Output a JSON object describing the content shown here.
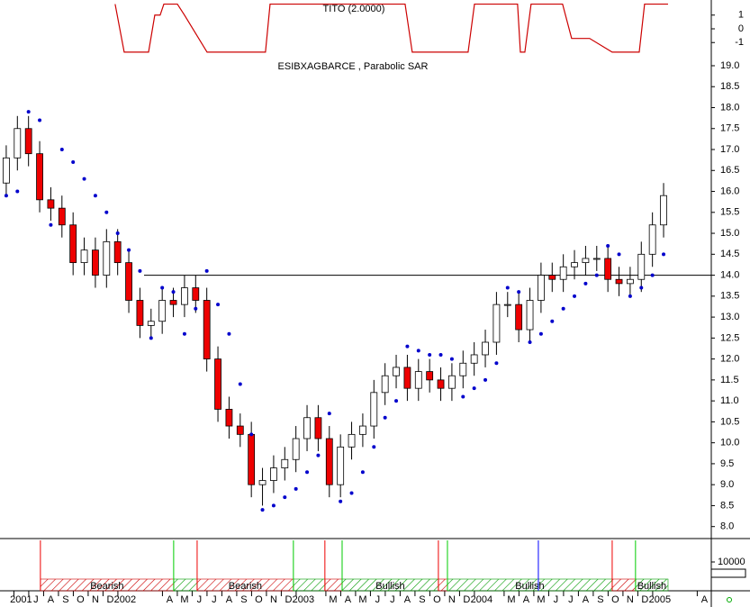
{
  "chart_data": {
    "type": "candlestick",
    "title": "ESIBXAGBARCE , Parabolic SAR",
    "x": [
      4,
      4.75,
      5.5,
      6.25,
      7,
      7.75,
      8.5,
      9.25,
      10,
      10.75,
      11.5,
      12.25,
      13,
      13.75,
      14.5,
      15.25,
      16,
      16.75,
      17.5,
      18.25,
      19,
      19.75,
      20.5,
      21.25,
      22,
      22.75,
      23.5,
      24.25,
      25,
      25.75,
      26.5,
      27.25,
      28,
      28.75,
      29.5,
      30.25,
      31,
      31.75,
      32.5,
      33.25,
      34,
      34.75,
      35.5,
      36.25,
      37,
      37.75,
      38.5,
      39.25,
      40,
      40.75,
      41.5,
      42.25,
      43,
      43.75,
      44.5,
      45.25,
      46,
      46.75,
      47.5,
      48.25
    ],
    "open": [
      16.2,
      16.8,
      17.5,
      16.9,
      15.8,
      15.6,
      15.2,
      14.3,
      14.6,
      14.0,
      14.8,
      14.3,
      13.4,
      12.8,
      12.9,
      13.4,
      13.3,
      13.7,
      13.4,
      12.0,
      10.8,
      10.4,
      10.2,
      9.0,
      9.1,
      9.4,
      9.6,
      10.1,
      10.6,
      10.1,
      9.0,
      9.9,
      10.2,
      10.4,
      11.2,
      11.6,
      11.8,
      11.3,
      11.7,
      11.5,
      11.3,
      11.6,
      11.9,
      12.1,
      12.4,
      13.3,
      13.3,
      12.7,
      13.4,
      14.0,
      13.9,
      14.2,
      14.3,
      14.4,
      14.4,
      13.9,
      13.8,
      13.9,
      14.5,
      15.2
    ],
    "high": [
      17.1,
      17.8,
      17.8,
      17.2,
      16.1,
      15.9,
      15.5,
      14.9,
      14.9,
      15.1,
      15.1,
      14.6,
      13.7,
      13.2,
      13.7,
      13.7,
      14.0,
      14.0,
      13.7,
      12.3,
      11.1,
      10.7,
      10.5,
      9.4,
      9.7,
      9.9,
      10.4,
      10.9,
      10.9,
      10.4,
      10.2,
      10.5,
      10.7,
      11.5,
      11.9,
      12.1,
      12.1,
      12.0,
      12.0,
      11.8,
      11.9,
      12.2,
      12.4,
      12.7,
      13.6,
      13.6,
      13.6,
      13.7,
      14.3,
      14.3,
      14.5,
      14.6,
      14.7,
      14.7,
      14.7,
      14.2,
      14.2,
      14.8,
      15.5,
      16.2
    ],
    "low": [
      15.9,
      16.5,
      16.6,
      15.5,
      15.3,
      14.9,
      14.0,
      14.0,
      13.7,
      13.7,
      14.0,
      13.1,
      12.5,
      12.5,
      12.6,
      13.0,
      13.0,
      13.1,
      11.7,
      10.5,
      10.1,
      9.9,
      8.7,
      8.5,
      8.8,
      9.1,
      9.3,
      9.8,
      9.8,
      8.7,
      8.7,
      9.6,
      9.9,
      10.1,
      10.9,
      11.3,
      11.0,
      11.0,
      11.2,
      11.0,
      11.0,
      11.3,
      11.6,
      11.8,
      12.1,
      13.0,
      12.4,
      12.4,
      13.1,
      13.6,
      13.6,
      13.9,
      14.0,
      14.1,
      13.6,
      13.5,
      13.5,
      13.6,
      14.2,
      14.9
    ],
    "close": [
      16.8,
      17.5,
      16.9,
      15.8,
      15.6,
      15.2,
      14.3,
      14.6,
      14.0,
      14.8,
      14.3,
      13.4,
      12.8,
      12.9,
      13.4,
      13.3,
      13.7,
      13.4,
      12.0,
      10.8,
      10.4,
      10.2,
      9.0,
      9.1,
      9.4,
      9.6,
      10.1,
      10.6,
      10.1,
      9.0,
      9.9,
      10.2,
      10.4,
      11.2,
      11.6,
      11.8,
      11.3,
      11.7,
      11.5,
      11.3,
      11.6,
      11.9,
      12.1,
      12.4,
      13.3,
      13.3,
      12.7,
      13.4,
      14.0,
      13.9,
      14.2,
      14.3,
      14.4,
      14.4,
      13.9,
      13.8,
      13.9,
      14.5,
      15.2,
      15.9
    ],
    "up_color": "#ffffff",
    "down_color": "#ee0000",
    "sar": {
      "color": "#0000cc",
      "values": [
        15.9,
        16.0,
        17.9,
        17.7,
        15.2,
        17.0,
        16.7,
        16.3,
        15.9,
        15.5,
        15.0,
        14.6,
        14.1,
        12.5,
        13.7,
        13.6,
        12.6,
        13.2,
        14.1,
        13.3,
        12.6,
        11.4,
        10.2,
        8.4,
        8.5,
        8.7,
        8.9,
        9.3,
        9.7,
        10.7,
        8.6,
        8.8,
        9.3,
        9.9,
        10.6,
        11.0,
        12.3,
        12.2,
        12.1,
        12.1,
        12.0,
        11.1,
        11.3,
        11.5,
        11.9,
        13.7,
        13.6,
        12.4,
        12.6,
        12.9,
        13.2,
        13.5,
        13.8,
        14.0,
        14.7,
        14.5,
        13.5,
        13.7,
        14.0,
        14.5
      ]
    },
    "reference_line": 14,
    "xlim": [
      3.58,
      51.4
    ],
    "ylim": [
      7.8,
      19.15
    ],
    "yticks": [
      {
        "value": 8,
        "label": "8.0"
      },
      8.5,
      {
        "value": 9,
        "label": "9.0"
      },
      9.5,
      {
        "value": 10,
        "label": "10.0"
      },
      10.5,
      {
        "value": 11,
        "label": "11.0"
      },
      11.5,
      {
        "value": 12,
        "label": "12.0"
      },
      12.5,
      {
        "value": 13,
        "label": "13.0"
      },
      13.5,
      {
        "value": 14,
        "label": "14.0"
      },
      14.5,
      {
        "value": 15,
        "label": "15.0"
      },
      15.5,
      {
        "value": 16,
        "label": "16.0"
      },
      16.5,
      {
        "value": 17,
        "label": "17.0"
      },
      17.5,
      {
        "value": 18,
        "label": "18.0"
      },
      18.5,
      {
        "value": 19,
        "label": "19.0"
      }
    ],
    "xticks": [
      {
        "value": 5,
        "label": "2001"
      },
      {
        "value": 6,
        "label": "J"
      },
      {
        "value": 7,
        "label": "A"
      },
      {
        "value": 8,
        "label": "S"
      },
      {
        "value": 9,
        "label": "O"
      },
      {
        "value": 10,
        "label": "N"
      },
      {
        "value": 11,
        "label": "D"
      },
      {
        "value": 12,
        "label": "2002"
      },
      {
        "value": 15,
        "label": "A"
      },
      {
        "value": 16,
        "label": "M"
      },
      {
        "value": 17,
        "label": "J"
      },
      {
        "value": 18,
        "label": "J"
      },
      {
        "value": 19,
        "label": "A"
      },
      {
        "value": 20,
        "label": "S"
      },
      {
        "value": 21,
        "label": "O"
      },
      {
        "value": 22,
        "label": "N"
      },
      {
        "value": 23,
        "label": "D"
      },
      {
        "value": 24,
        "label": "2003"
      },
      {
        "value": 26,
        "label": "M"
      },
      {
        "value": 27,
        "label": "A"
      },
      {
        "value": 28,
        "label": "M"
      },
      {
        "value": 29,
        "label": "J"
      },
      {
        "value": 30,
        "label": "J"
      },
      {
        "value": 31,
        "label": "A"
      },
      {
        "value": 32,
        "label": "S"
      },
      {
        "value": 33,
        "label": "O"
      },
      {
        "value": 34,
        "label": "N"
      },
      {
        "value": 35,
        "label": "D"
      },
      {
        "value": 36,
        "label": "2004"
      },
      {
        "value": 38,
        "label": "M"
      },
      {
        "value": 39,
        "label": "A"
      },
      {
        "value": 40,
        "label": "M"
      },
      {
        "value": 41,
        "label": "J"
      },
      {
        "value": 42,
        "label": "J"
      },
      {
        "value": 43,
        "label": "A"
      },
      {
        "value": 44,
        "label": "S"
      },
      {
        "value": 45,
        "label": "O"
      },
      {
        "value": 46,
        "label": "N"
      },
      {
        "value": 47,
        "label": "D"
      },
      {
        "value": 48,
        "label": "2005"
      },
      {
        "value": 51,
        "label": "A"
      }
    ],
    "indicator": {
      "title": "TITO (2.0000)",
      "color": "#cc0000",
      "x": [
        11.33,
        11.94,
        13.58,
        14.0,
        14.36,
        14.61,
        15.52,
        16.0,
        17.52,
        21.45,
        21.76,
        30.85,
        31.33,
        35.09,
        35.52,
        38.42,
        38.61,
        38.91,
        39.33,
        41.45,
        42.06,
        43.27,
        44.79,
        46.61,
        46.97,
        48.55
      ],
      "values": [
        1.8,
        -1.7,
        -1.7,
        1.0,
        1.0,
        1.8,
        1.8,
        1.0,
        -1.7,
        -1.7,
        1.8,
        1.8,
        -1.7,
        -1.7,
        1.8,
        1.8,
        -1.7,
        -1.7,
        1.8,
        1.8,
        -0.7,
        -0.7,
        -1.7,
        -1.7,
        1.8,
        1.8
      ],
      "ylim": [
        -2.1,
        2.1
      ],
      "yticks": [
        1,
        0,
        -1
      ]
    },
    "volume": {
      "ylim": [
        0,
        23000
      ],
      "yticks": [
        10000
      ]
    },
    "signals": {
      "sell_color": "#ee0000",
      "sell_x": [
        6.3,
        16.85,
        25.45,
        33.09,
        44.79
      ],
      "buy_color": "#00cc00",
      "buy_x": [
        15.27,
        23.33,
        26.61,
        33.7,
        46.36
      ],
      "other_color": "#0000ff",
      "other_x": [
        39.82
      ]
    },
    "bands": [
      {
        "start": 6.3,
        "end": 15.27,
        "color": "#cc0000",
        "label": "Bearish"
      },
      {
        "start": 15.27,
        "end": 16.85,
        "color": "#009900"
      },
      {
        "start": 16.85,
        "end": 23.33,
        "color": "#cc0000",
        "label": "Bearish"
      },
      {
        "start": 23.33,
        "end": 25.45,
        "color": "#009900"
      },
      {
        "start": 25.45,
        "end": 26.61,
        "color": "#cc0000"
      },
      {
        "start": 26.61,
        "end": 33.09,
        "color": "#009900",
        "label": "Bullish"
      },
      {
        "start": 33.09,
        "end": 33.7,
        "color": "#cc0000"
      },
      {
        "start": 33.7,
        "end": 44.79,
        "color": "#009900",
        "label": "Bullish"
      },
      {
        "start": 44.79,
        "end": 46.36,
        "color": "#cc0000"
      },
      {
        "start": 46.36,
        "end": 48.55,
        "color": "#009900",
        "label": "Bullish"
      }
    ]
  }
}
